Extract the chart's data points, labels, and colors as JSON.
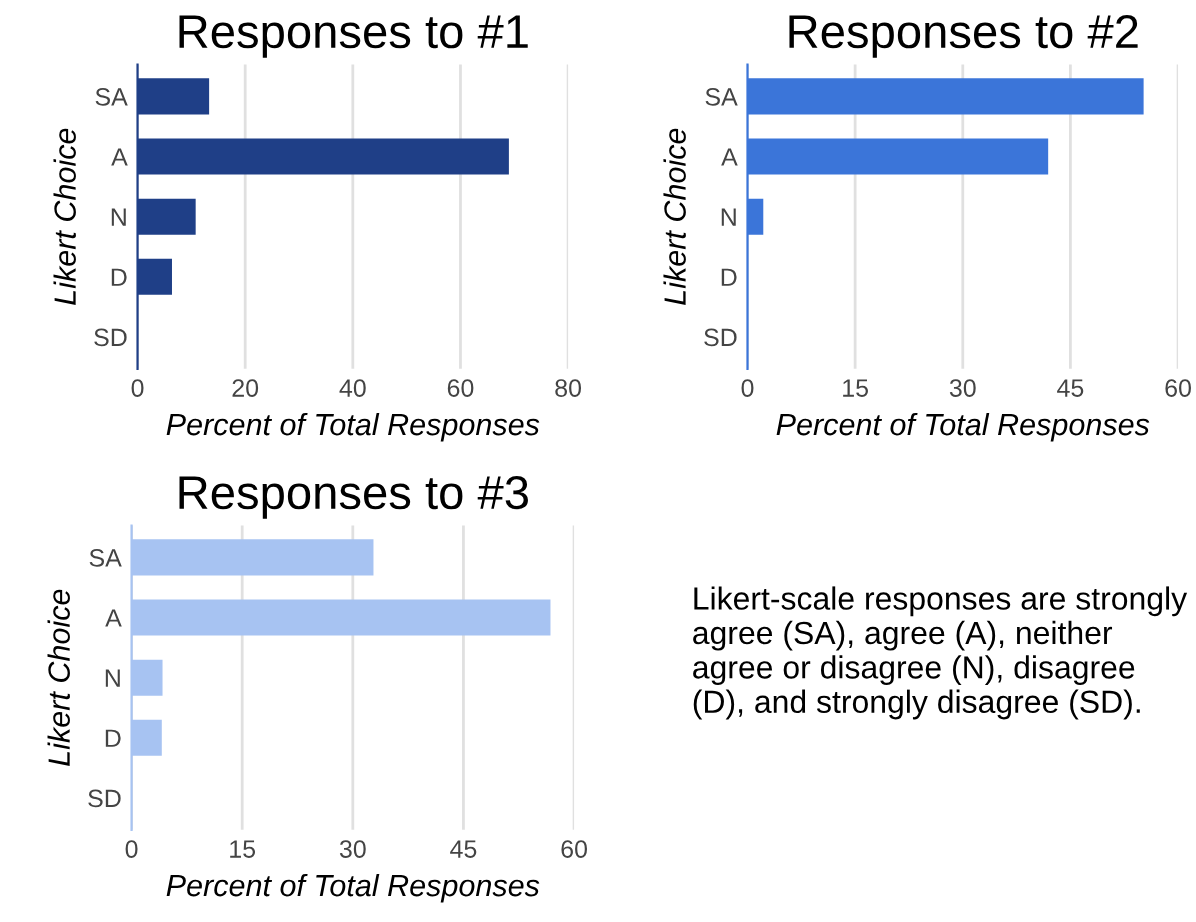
{
  "chart_data": [
    {
      "type": "bar",
      "orientation": "horizontal",
      "title": "Responses to #1",
      "xlabel": "Percent of Total Responses",
      "ylabel": "Likert Choice",
      "categories": [
        "SA",
        "A",
        "N",
        "D",
        "SD"
      ],
      "values": [
        13.3,
        69,
        10.8,
        6.4,
        0
      ],
      "color": "#1f3f87",
      "xlim": [
        0,
        80
      ],
      "xticks": [
        0,
        20,
        40,
        60,
        80
      ],
      "grid": "x"
    },
    {
      "type": "bar",
      "orientation": "horizontal",
      "title": "Responses to #2",
      "xlabel": "Percent of Total Responses",
      "ylabel": "Likert Choice",
      "categories": [
        "SA",
        "A",
        "N",
        "D",
        "SD"
      ],
      "values": [
        55.2,
        41.9,
        2.2,
        0,
        0
      ],
      "color": "#3b75d9",
      "xlim": [
        0,
        60
      ],
      "xticks": [
        0,
        15,
        30,
        45,
        60
      ],
      "grid": "x"
    },
    {
      "type": "bar",
      "orientation": "horizontal",
      "title": "Responses to #3",
      "xlabel": "Percent of Total Responses",
      "ylabel": "Likert Choice",
      "categories": [
        "SA",
        "A",
        "N",
        "D",
        "SD"
      ],
      "values": [
        32.8,
        56.8,
        4.2,
        4.1,
        0
      ],
      "color": "#a7c3f2",
      "xlim": [
        0,
        60
      ],
      "xticks": [
        0,
        15,
        30,
        45,
        60
      ],
      "grid": "x"
    },
    {
      "type": "other",
      "annotations": [
        "Likert-scale responses are strongly agree (SA), agree (A), neither agree or disagree (N), disagree (D), and strongly disagree (SD)."
      ]
    }
  ]
}
